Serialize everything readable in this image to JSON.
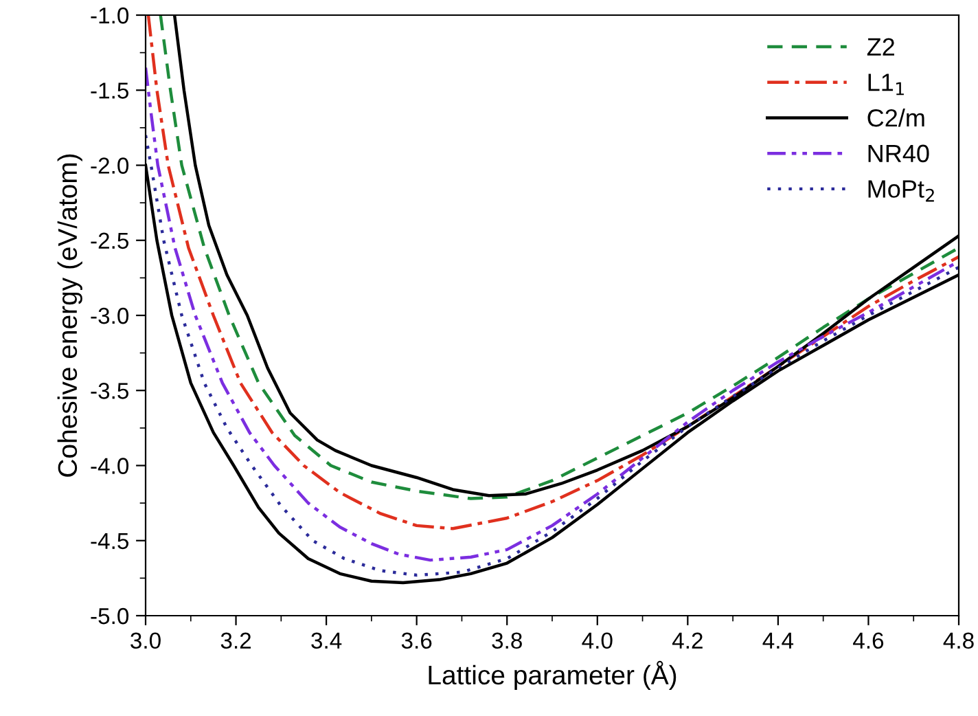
{
  "chart_data": {
    "type": "line",
    "xlabel": "Lattice parameter (Å)",
    "ylabel": "Cohesive energy (eV/atom)",
    "xlim": [
      3.0,
      4.8
    ],
    "xticks": [
      {
        "value": 3,
        "label": "3.0"
      },
      3.2,
      3.4,
      3.6,
      3.8,
      {
        "value": 4,
        "label": "4.0"
      },
      4.2,
      4.4,
      4.6,
      4.8
    ],
    "ylim": [
      -5.0,
      -1.0
    ],
    "yticks": [
      {
        "value": -5,
        "label": "-5.0"
      },
      -4.5,
      {
        "value": -4,
        "label": "-4.0"
      },
      -3.5,
      {
        "value": -3,
        "label": "-3.0"
      },
      -2.5,
      {
        "value": -2,
        "label": "-2.0"
      },
      -1.5,
      {
        "value": -1,
        "label": "-1.0"
      }
    ],
    "legend": "top right",
    "grid": false,
    "series": [
      {
        "name": "Z2",
        "color": "#1e8c3c",
        "line_style": "dashed",
        "x": [
          3.033,
          3.055,
          3.08,
          3.13,
          3.185,
          3.25,
          3.33,
          3.41,
          3.5,
          3.6,
          3.72,
          3.8,
          3.9,
          4.0,
          4.1,
          4.2,
          4.3,
          4.4,
          4.5,
          4.6,
          4.7,
          4.8
        ],
        "values": [
          -1.0,
          -1.5,
          -2.0,
          -2.55,
          -3.0,
          -3.45,
          -3.8,
          -4.0,
          -4.11,
          -4.17,
          -4.22,
          -4.21,
          -4.1,
          -3.95,
          -3.8,
          -3.65,
          -3.47,
          -3.28,
          -3.08,
          -2.89,
          -2.72,
          -2.55
        ]
      },
      {
        "name": "L1$_{1}$",
        "color": "#e0301e",
        "line_style": "dashdot",
        "x": [
          3.006,
          3.025,
          3.05,
          3.095,
          3.15,
          3.21,
          3.28,
          3.35,
          3.43,
          3.52,
          3.6,
          3.68,
          3.8,
          3.9,
          4.0,
          4.1,
          4.2,
          4.3,
          4.4,
          4.5,
          4.6,
          4.7,
          4.8
        ],
        "values": [
          -1.0,
          -1.5,
          -2.0,
          -2.55,
          -3.0,
          -3.45,
          -3.78,
          -4.0,
          -4.18,
          -4.32,
          -4.4,
          -4.42,
          -4.35,
          -4.24,
          -4.1,
          -3.93,
          -3.74,
          -3.54,
          -3.34,
          -3.14,
          -2.94,
          -2.77,
          -2.61
        ]
      },
      {
        "name": "C2/m",
        "color": "#000000",
        "line_style": "solid",
        "x": [
          3.064,
          3.085,
          3.11,
          3.14,
          3.18,
          3.225,
          3.27,
          3.32,
          3.38,
          3.42,
          3.5,
          3.6,
          3.68,
          3.76,
          3.84,
          3.92,
          4.0,
          4.1,
          4.2,
          4.3,
          4.4,
          4.5,
          4.6,
          4.7,
          4.8
        ],
        "values": [
          -1.0,
          -1.5,
          -2.0,
          -2.4,
          -2.73,
          -3.0,
          -3.35,
          -3.65,
          -3.83,
          -3.9,
          -4.0,
          -4.08,
          -4.16,
          -4.2,
          -4.19,
          -4.12,
          -4.03,
          -3.9,
          -3.74,
          -3.55,
          -3.34,
          -3.12,
          -2.89,
          -2.68,
          -2.47
        ]
      },
      {
        "name": "NR40",
        "color": "#7b2ee0",
        "line_style": "dashdotdot",
        "x": [
          3.0,
          3.012,
          3.027,
          3.065,
          3.11,
          3.17,
          3.23,
          3.285,
          3.36,
          3.43,
          3.5,
          3.56,
          3.63,
          3.72,
          3.8,
          3.9,
          4.0,
          4.1,
          4.2,
          4.3,
          4.4,
          4.5,
          4.6,
          4.7,
          4.8
        ],
        "values": [
          -1.35,
          -1.65,
          -2.0,
          -2.55,
          -3.0,
          -3.45,
          -3.78,
          -4.0,
          -4.25,
          -4.41,
          -4.52,
          -4.59,
          -4.63,
          -4.61,
          -4.56,
          -4.4,
          -4.19,
          -3.95,
          -3.71,
          -3.5,
          -3.31,
          -3.14,
          -2.98,
          -2.81,
          -2.64
        ]
      },
      {
        "name": "MoPt$_{2}$",
        "color": "#2b2b9a",
        "line_style": "dotted",
        "x": [
          3.0,
          3.012,
          3.04,
          3.08,
          3.13,
          3.18,
          3.235,
          3.3,
          3.37,
          3.44,
          3.52,
          3.6,
          3.7,
          3.8,
          3.9,
          4.0,
          4.1,
          4.2,
          4.3,
          4.4,
          4.5,
          4.6,
          4.7,
          4.8
        ],
        "values": [
          -1.8,
          -2.0,
          -2.5,
          -3.0,
          -3.45,
          -3.75,
          -4.0,
          -4.27,
          -4.5,
          -4.62,
          -4.7,
          -4.73,
          -4.71,
          -4.62,
          -4.44,
          -4.22,
          -3.97,
          -3.74,
          -3.54,
          -3.35,
          -3.17,
          -3.0,
          -2.84,
          -2.68
        ]
      },
      {
        "color": "#000000",
        "line_style": "solid",
        "x": [
          3.0,
          3.025,
          3.058,
          3.1,
          3.15,
          3.195,
          3.25,
          3.295,
          3.36,
          3.43,
          3.5,
          3.57,
          3.65,
          3.72,
          3.8,
          3.9,
          4.0,
          4.1,
          4.2,
          4.3,
          4.4,
          4.5,
          4.6,
          4.7,
          4.8
        ],
        "values": [
          -2.0,
          -2.5,
          -3.0,
          -3.45,
          -3.78,
          -4.0,
          -4.28,
          -4.45,
          -4.62,
          -4.72,
          -4.77,
          -4.78,
          -4.76,
          -4.72,
          -4.65,
          -4.48,
          -4.26,
          -4.02,
          -3.78,
          -3.57,
          -3.37,
          -3.2,
          -3.03,
          -2.88,
          -2.73
        ]
      }
    ]
  }
}
